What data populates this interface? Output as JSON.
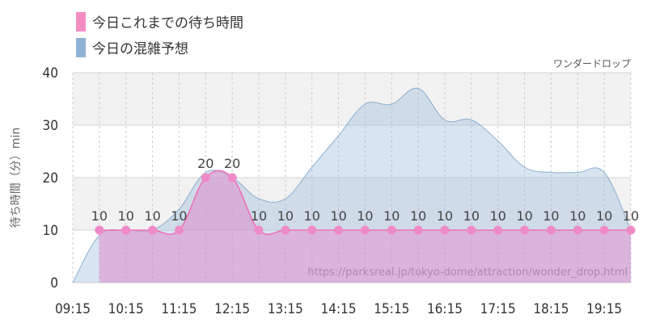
{
  "chart_data": {
    "type": "area",
    "attraction_name": "ワンダードロップ",
    "ylabel": "待ち時間（分）min",
    "ylim": [
      0,
      40
    ],
    "yticks": [
      "0",
      "10",
      "20",
      "30",
      "40"
    ],
    "xlim": [
      "09:15",
      "19:45"
    ],
    "xticks": [
      "09:15",
      "10:15",
      "11:15",
      "12:15",
      "13:15",
      "14:15",
      "15:15",
      "16:15",
      "17:15",
      "18:15",
      "19:15"
    ],
    "source_url": "https://parksreal.jp/tokyo-dome/attraction/wonder_drop.html",
    "series": [
      {
        "name": "今日これまでの待ち時間",
        "color": "#f48cc4",
        "x": [
          "09:45",
          "10:15",
          "10:45",
          "11:15",
          "11:45",
          "12:15",
          "12:45",
          "13:15",
          "13:45",
          "14:15",
          "14:45",
          "15:15",
          "15:45",
          "16:15",
          "16:45",
          "17:15",
          "17:45",
          "18:15",
          "18:45",
          "19:15",
          "19:45"
        ],
        "values": [
          10,
          10,
          10,
          10,
          20,
          20,
          10,
          10,
          10,
          10,
          10,
          10,
          10,
          10,
          10,
          10,
          10,
          10,
          10,
          10,
          10
        ]
      },
      {
        "name": "今日の混雑予想",
        "color": "#8fb2d4",
        "x": [
          "09:15",
          "09:45",
          "10:15",
          "10:45",
          "11:15",
          "11:45",
          "12:15",
          "12:45",
          "13:15",
          "13:45",
          "14:15",
          "14:45",
          "15:15",
          "15:45",
          "16:15",
          "16:45",
          "17:15",
          "17:45",
          "18:15",
          "18:45",
          "19:15",
          "19:45"
        ],
        "values": [
          0,
          9,
          10,
          10,
          14,
          21,
          20,
          16,
          16,
          22,
          28,
          34,
          34,
          37,
          31,
          31,
          27,
          22,
          21,
          21,
          21,
          10
        ]
      }
    ]
  }
}
